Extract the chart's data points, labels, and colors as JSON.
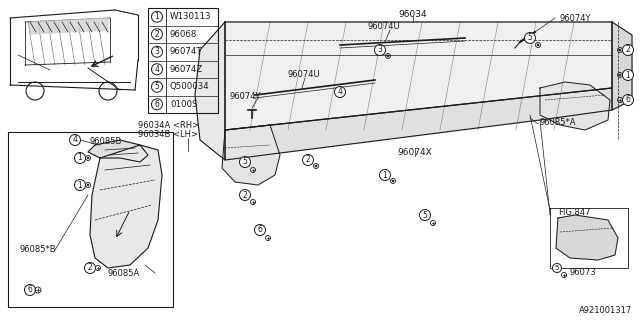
{
  "bg_color": "#ffffff",
  "line_color": "#1a1a1a",
  "diagram_id": "A921001317",
  "legend_items": [
    {
      "num": "1",
      "code": "W130113"
    },
    {
      "num": "2",
      "code": "96068"
    },
    {
      "num": "3",
      "code": "96074T"
    },
    {
      "num": "4",
      "code": "96074Z"
    },
    {
      "num": "5",
      "code": "Q500034"
    },
    {
      "num": "6",
      "code": "0100S"
    }
  ]
}
